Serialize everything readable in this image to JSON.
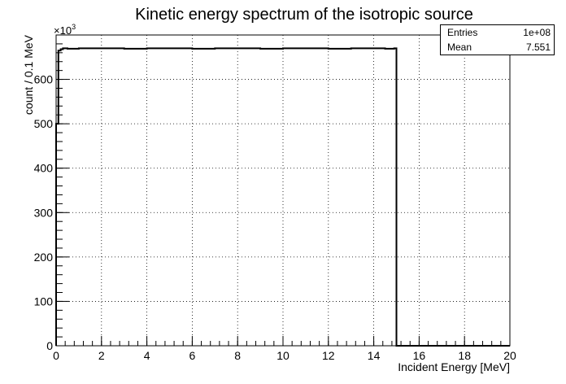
{
  "chart_data": {
    "type": "histogram",
    "title": "Kinetic energy spectrum of the isotropic source",
    "xlabel": "Incident Energy [MeV]",
    "ylabel": "count / 0.1 MeV",
    "y_multiplier_label": "×10",
    "y_multiplier_exp": "3",
    "xlim": [
      0,
      20
    ],
    "ylim": [
      0,
      700
    ],
    "x_ticks": [
      "0",
      "2",
      "4",
      "6",
      "8",
      "10",
      "12",
      "14",
      "16",
      "18",
      "20"
    ],
    "y_ticks": [
      "0",
      "100",
      "200",
      "300",
      "400",
      "500",
      "600"
    ],
    "grid": true,
    "bin_width": 0.1,
    "series": [
      {
        "x": [
          0.0,
          0.1,
          0.2,
          0.3,
          0.4,
          0.5,
          1.0,
          2.0,
          3.0,
          4.0,
          5.0,
          6.0,
          7.0,
          8.0,
          9.0,
          10.0,
          11.0,
          12.0,
          13.0,
          14.0,
          14.5,
          14.9,
          15.0
        ],
        "y": [
          500,
          665,
          668,
          670,
          670,
          669,
          670,
          670,
          669,
          670,
          670,
          669,
          670,
          670,
          669,
          670,
          670,
          669,
          670,
          670,
          669,
          670,
          0
        ]
      }
    ],
    "stats": {
      "entries_label": "Entries",
      "entries_value": "1e+08",
      "mean_label": "Mean",
      "mean_value": "7.551"
    }
  }
}
